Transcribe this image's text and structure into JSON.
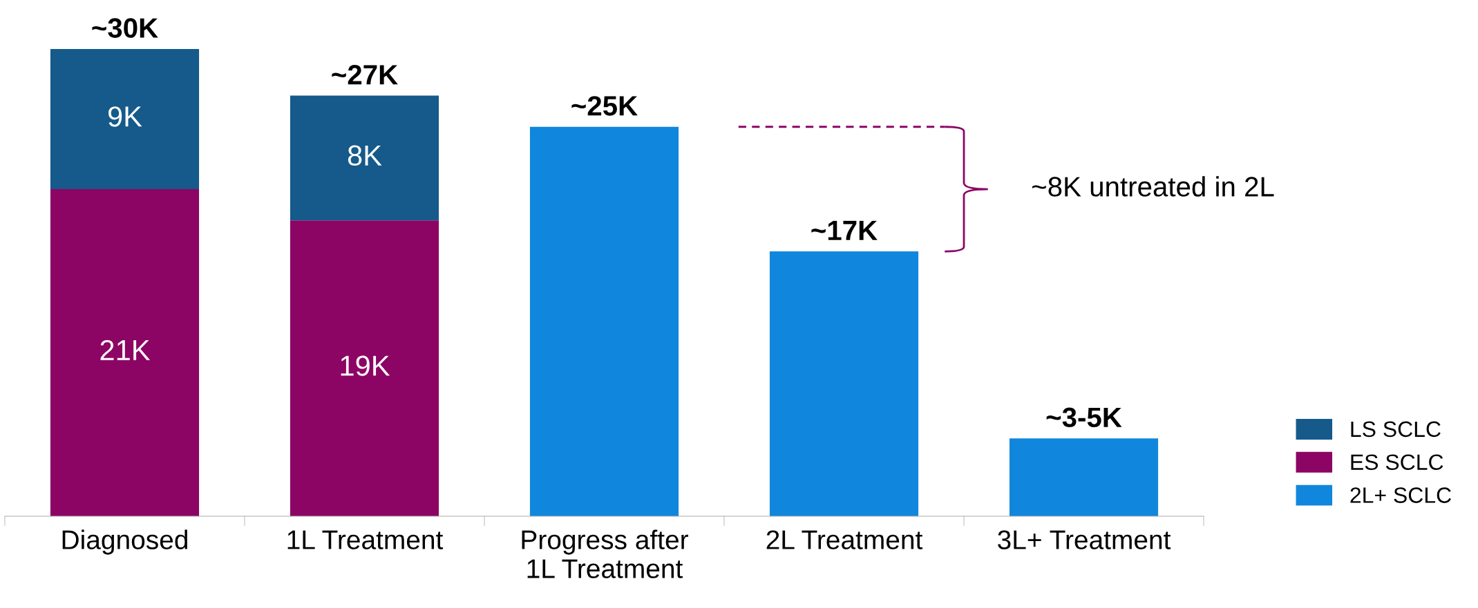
{
  "chart_data": {
    "type": "bar",
    "stacked": true,
    "categories": [
      "Diagnosed",
      "1L Treatment",
      "Progress after\n1L Treatment",
      "2L Treatment",
      "3L+ Treatment"
    ],
    "series": [
      {
        "name": "ES SCLC",
        "color": "#8c0565",
        "values": [
          21,
          19,
          null,
          null,
          null
        ],
        "value_labels": [
          "21K",
          "19K",
          null,
          null,
          null
        ]
      },
      {
        "name": "LS SCLC",
        "color": "#155a8a",
        "values": [
          9,
          8,
          null,
          null,
          null
        ],
        "value_labels": [
          "9K",
          "8K",
          null,
          null,
          null
        ]
      },
      {
        "name": "2L+ SCLC",
        "color": "#1087dc",
        "values": [
          null,
          null,
          25,
          17,
          5
        ]
      }
    ],
    "totals": [
      "~30K",
      "~27K",
      "~25K",
      "~17K",
      "~3-5K"
    ],
    "ref_lines": [
      {
        "axis": "y",
        "value": 25,
        "color": "#8c0565",
        "line_style": "dashed"
      }
    ],
    "annotations": [
      "~8K untreated in 2L"
    ],
    "legend": "bottom right",
    "grid": false
  }
}
